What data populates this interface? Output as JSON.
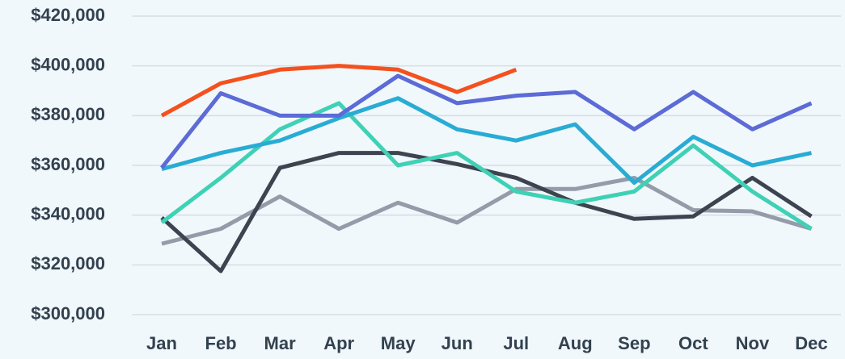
{
  "chart_data": {
    "type": "line",
    "categories": [
      "Jan",
      "Feb",
      "Mar",
      "Apr",
      "May",
      "Jun",
      "Jul",
      "Aug",
      "Sep",
      "Oct",
      "Nov",
      "Dec"
    ],
    "series": [
      {
        "color": "#939ca8",
        "values": [
          328500,
          334500,
          347500,
          334500,
          345000,
          337000,
          350500,
          350500,
          355000,
          342000,
          341500,
          334500
        ]
      },
      {
        "color": "#3d4450",
        "values": [
          339000,
          317500,
          359000,
          365000,
          365000,
          360500,
          355000,
          345000,
          338500,
          339500,
          355000,
          339500
        ]
      },
      {
        "color": "#3fd1b5",
        "values": [
          337000,
          355000,
          374500,
          385000,
          360000,
          365000,
          349500,
          345000,
          349500,
          368000,
          349500,
          334500
        ]
      },
      {
        "color": "#29acd4",
        "values": [
          358500,
          365000,
          370000,
          379000,
          387000,
          374500,
          370000,
          376500,
          353000,
          371500,
          360000,
          365000
        ]
      },
      {
        "color": "#5c6bd6",
        "values": [
          359000,
          389000,
          380000,
          380000,
          396000,
          385000,
          388000,
          389500,
          374500,
          389500,
          374500,
          385000
        ]
      },
      {
        "color": "#f4511e",
        "values": [
          380000,
          393000,
          398500,
          400000,
          398500,
          389500,
          398500,
          null,
          null,
          null,
          null,
          null
        ]
      }
    ],
    "ylim": [
      300000,
      420000
    ],
    "yticks": [
      {
        "value": 300000,
        "label": "$300,000"
      },
      {
        "value": 320000,
        "label": "$320,000"
      },
      {
        "value": 340000,
        "label": "$340,000"
      },
      {
        "value": 360000,
        "label": "$360,000"
      },
      {
        "value": 380000,
        "label": "$380,000"
      },
      {
        "value": 400000,
        "label": "$400,000"
      },
      {
        "value": 420000,
        "label": "$420,000"
      }
    ],
    "grid": true
  }
}
